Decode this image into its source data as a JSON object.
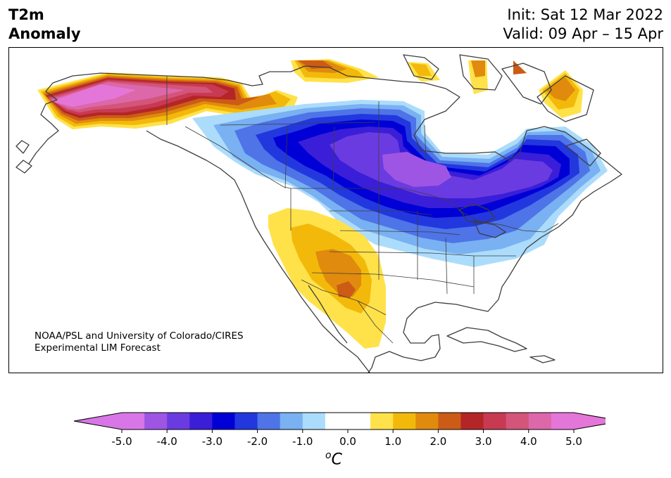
{
  "title": {
    "left_line1": "T2m",
    "left_line2": "Anomaly",
    "right_line1": "Init: Sat 12 Mar 2022",
    "right_line2": "Valid: 09 Apr – 15 Apr"
  },
  "credit": {
    "line1": "NOAA/PSL and University of Colorado/CIRES",
    "line2": "Experimental LIM Forecast"
  },
  "colorbar": {
    "unit": "C",
    "unit_prefix": "o",
    "extend": "both",
    "levels": [
      -5.0,
      -4.5,
      -4.0,
      -3.5,
      -3.0,
      -2.5,
      -2.0,
      -1.5,
      -1.0,
      -0.5,
      0.5,
      1.0,
      1.5,
      2.0,
      2.5,
      3.0,
      3.5,
      4.0,
      4.5,
      5.0
    ],
    "colors": [
      "#d876e8",
      "#9e55e3",
      "#6a3be0",
      "#3b1ed8",
      "#0000d6",
      "#2238de",
      "#4e74e8",
      "#79b1f2",
      "#acdcfb",
      "#ffffff",
      "#ffe24a",
      "#f3b90a",
      "#e08b0d",
      "#cc5b16",
      "#b42527",
      "#c73a52",
      "#d4557a",
      "#dc68aa",
      "#e576d9"
    ],
    "under_color": "#d876e8",
    "over_color": "#e576d9",
    "tick_labels": [
      "-5.0",
      "-4.0",
      "-3.0",
      "-2.0",
      "-1.0",
      "0.0",
      "1.0",
      "2.0",
      "3.0",
      "4.0",
      "5.0"
    ]
  }
}
